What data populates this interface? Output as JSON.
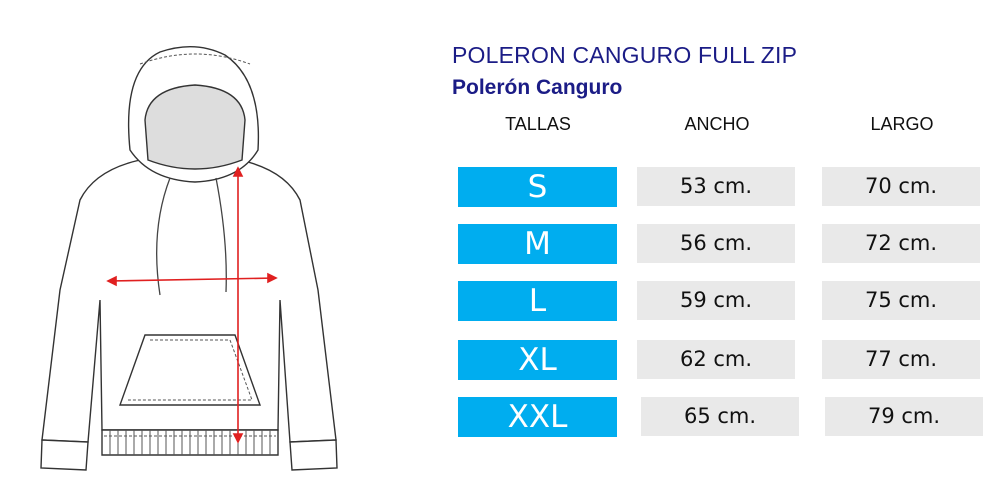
{
  "title": "POLERON CANGURO FULL ZIP",
  "subtitle": "Polerón Canguro",
  "headers": {
    "sizes": "TALLAS",
    "width": "ANCHO",
    "length": "LARGO"
  },
  "rows": [
    {
      "size": "S",
      "width": "53 cm.",
      "length": "70 cm."
    },
    {
      "size": "M",
      "width": "56 cm.",
      "length": "72 cm."
    },
    {
      "size": "L",
      "width": "59 cm.",
      "length": "75 cm."
    },
    {
      "size": "XL",
      "width": "62 cm.",
      "length": "77 cm."
    },
    {
      "size": "XXL",
      "width": "65 cm.",
      "length": "79 cm."
    }
  ],
  "colors": {
    "title": "#1b1c86",
    "size_cell": "#00adef",
    "value_cell": "#e9e9e9",
    "measure_arrow": "#e02020"
  }
}
